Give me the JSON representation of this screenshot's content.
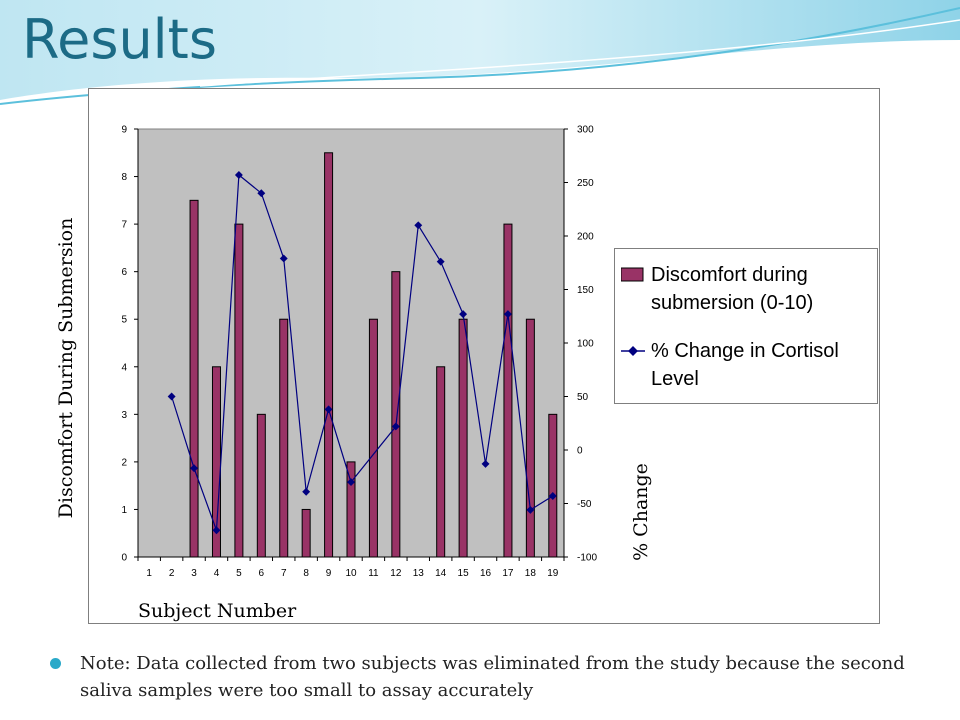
{
  "slide": {
    "title": "Results",
    "note": "Note: Data collected from two subjects was eliminated from the study because the second saliva samples were too small to assay accurately",
    "accent_color": "#1c6b86",
    "bullet_color": "#2aa9c9"
  },
  "chart_data": {
    "type": "bar",
    "title": "",
    "xlabel": "Subject Number",
    "ylabel": "Discomfort During Submersion",
    "y2label": "% Change",
    "categories": [
      "1",
      "2",
      "3",
      "4",
      "5",
      "6",
      "7",
      "8",
      "9",
      "10",
      "11",
      "12",
      "13",
      "14",
      "15",
      "16",
      "17",
      "18",
      "19"
    ],
    "ylim": [
      0,
      9
    ],
    "yticks": [
      0,
      1,
      2,
      3,
      4,
      5,
      6,
      7,
      8,
      9
    ],
    "y2lim": [
      -100,
      300
    ],
    "y2ticks": [
      -100,
      -50,
      0,
      50,
      100,
      150,
      200,
      250,
      300
    ],
    "grid": false,
    "plot_background": "#c0c0c0",
    "legend_position": "right",
    "series": [
      {
        "name": "Discomfort during submersion (0-10)",
        "type": "bar",
        "axis": "left",
        "color": "#993366",
        "values": [
          null,
          null,
          7.5,
          4,
          7,
          3,
          5,
          1,
          8.5,
          2,
          5,
          6,
          null,
          4,
          5,
          null,
          7,
          5,
          3
        ]
      },
      {
        "name": "% Change in Cortisol Level",
        "type": "line",
        "axis": "right",
        "color": "#000080",
        "values": [
          null,
          50,
          -17,
          -75,
          257,
          240,
          179,
          -39,
          38,
          -30,
          null,
          22,
          210,
          176,
          127,
          -13,
          127,
          -56,
          -43
        ]
      }
    ]
  }
}
